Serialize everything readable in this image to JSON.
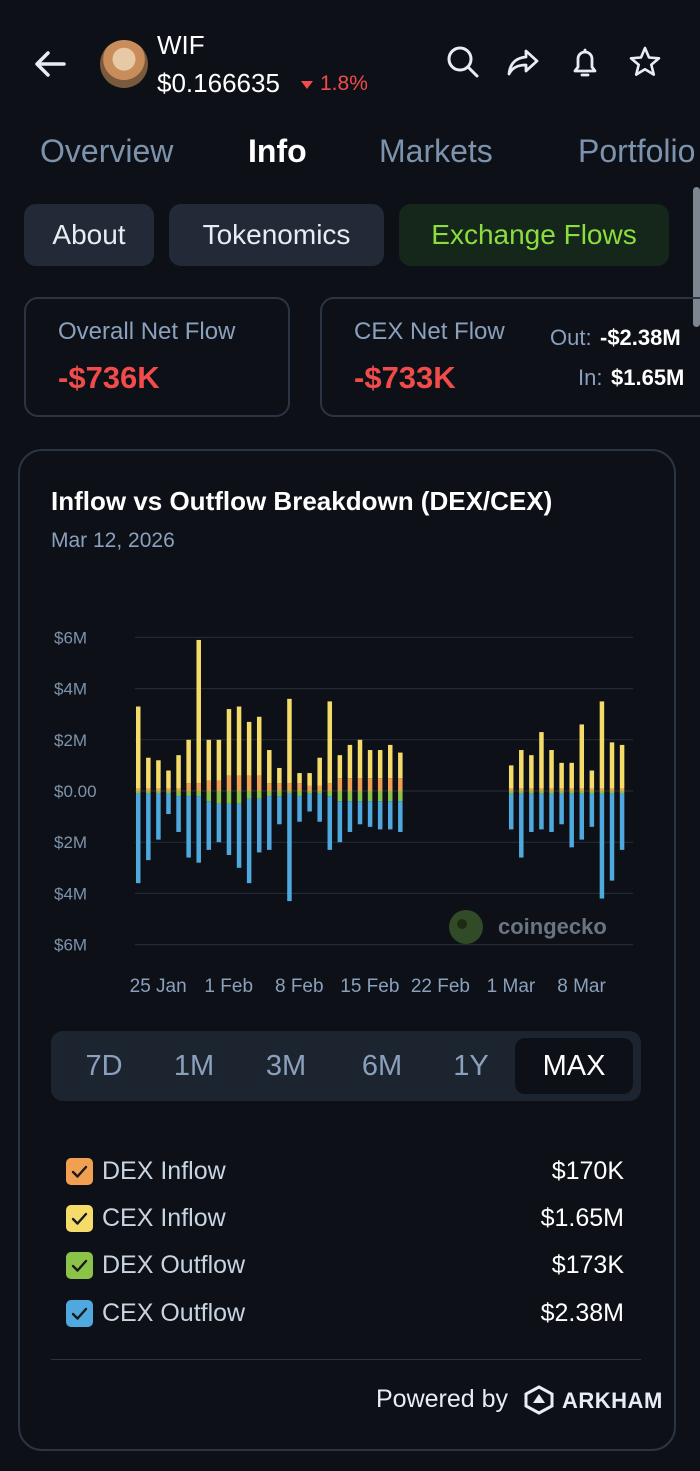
{
  "header": {
    "symbol": "WIF",
    "price": "$0.166635",
    "change": "1.8%"
  },
  "tabs": [
    {
      "label": "Overview"
    },
    {
      "label": "Info"
    },
    {
      "label": "Markets"
    },
    {
      "label": "Portfolio"
    }
  ],
  "pills": [
    {
      "label": "About"
    },
    {
      "label": "Tokenomics"
    },
    {
      "label": "Exchange Flows"
    }
  ],
  "overall": {
    "label": "Overall Net Flow",
    "value": "-$736K"
  },
  "cex": {
    "label": "CEX Net Flow",
    "value": "-$733K",
    "out_label": "Out:",
    "out_value": "-$2.38M",
    "in_label": "In:",
    "in_value": "$1.65M"
  },
  "chart": {
    "title": "Inflow vs Outflow Breakdown (DEX/CEX)",
    "date": "Mar 12, 2026",
    "watermark": "coingecko"
  },
  "chart_data": {
    "type": "bar",
    "stacked": true,
    "y_ticks": [
      "$6M",
      "$4M",
      "$2M",
      "$0.00",
      "$2M",
      "$4M",
      "$6M"
    ],
    "ylim": [
      -6,
      6
    ],
    "y_unit": "$M",
    "x_ticks": [
      "25 Jan",
      "1 Feb",
      "8 Feb",
      "15 Feb",
      "22 Feb",
      "1 Mar",
      "8 Mar"
    ],
    "x": [
      "Jan 23",
      "Jan 24",
      "Jan 25",
      "Jan 26",
      "Jan 27",
      "Jan 28",
      "Jan 29",
      "Jan 30",
      "Jan 31",
      "Feb 1",
      "Feb 2",
      "Feb 3",
      "Feb 4",
      "Feb 5",
      "Feb 6",
      "Feb 7",
      "Feb 8",
      "Feb 9",
      "Feb 10",
      "Feb 11",
      "Feb 12",
      "Feb 13",
      "Feb 14",
      "Feb 15",
      "Feb 16",
      "Feb 17",
      "Feb 18",
      "Mar 1",
      "Mar 2",
      "Mar 3",
      "Mar 4",
      "Mar 5",
      "Mar 6",
      "Mar 7",
      "Mar 8",
      "Mar 9",
      "Mar 10",
      "Mar 11",
      "Mar 12"
    ],
    "grid": true,
    "legend_position": "bottom",
    "series": [
      {
        "name": "DEX Inflow",
        "color": "#f0a050",
        "values": [
          0.1,
          0.1,
          0.1,
          0.1,
          0.1,
          0.3,
          0.3,
          0.4,
          0.4,
          0.6,
          0.6,
          0.6,
          0.6,
          0.3,
          0.3,
          0.3,
          0.3,
          0.2,
          0.2,
          0.3,
          0.5,
          0.5,
          0.5,
          0.5,
          0.5,
          0.5,
          0.5,
          0.1,
          0.1,
          0.1,
          0.1,
          0.1,
          0.1,
          0.1,
          0.1,
          0.1,
          0.1,
          0.1,
          0.1
        ]
      },
      {
        "name": "CEX Inflow",
        "color": "#f5dc6a",
        "values": [
          3.2,
          1.2,
          1.1,
          0.7,
          1.3,
          1.7,
          5.6,
          1.6,
          1.6,
          2.6,
          2.7,
          2.1,
          2.3,
          1.3,
          0.6,
          3.3,
          0.4,
          0.5,
          1.1,
          3.2,
          0.9,
          1.3,
          1.5,
          1.1,
          1.1,
          1.3,
          1.0,
          0.9,
          1.5,
          1.3,
          2.2,
          1.5,
          1.0,
          1.0,
          2.5,
          0.7,
          3.4,
          1.8,
          1.7
        ]
      },
      {
        "name": "DEX Outflow",
        "color": "#8bc34a",
        "values": [
          0.1,
          0.1,
          0.1,
          0.1,
          0.2,
          0.2,
          0.2,
          0.4,
          0.5,
          0.5,
          0.5,
          0.3,
          0.3,
          0.2,
          0.2,
          0.1,
          0.2,
          0.1,
          0.1,
          0.2,
          0.4,
          0.4,
          0.4,
          0.4,
          0.4,
          0.4,
          0.4,
          0.1,
          0.1,
          0.1,
          0.1,
          0.1,
          0.1,
          0.1,
          0.1,
          0.1,
          0.1,
          0.1,
          0.1
        ]
      },
      {
        "name": "CEX Outflow",
        "color": "#4fa8de",
        "values": [
          -3.6,
          -2.7,
          -1.9,
          -0.9,
          -1.6,
          -2.6,
          -2.8,
          -2.3,
          -2.0,
          -2.5,
          -3.0,
          -3.6,
          -2.4,
          -2.3,
          -1.3,
          -4.3,
          -1.2,
          -0.8,
          -1.2,
          -2.3,
          -2.0,
          -1.6,
          -1.3,
          -1.4,
          -1.5,
          -1.5,
          -1.6,
          -1.5,
          -2.6,
          -1.6,
          -1.5,
          -1.6,
          -1.3,
          -2.2,
          -1.9,
          -1.4,
          -4.2,
          -3.5,
          -2.3
        ]
      }
    ]
  },
  "ranges": [
    {
      "label": "7D"
    },
    {
      "label": "1M"
    },
    {
      "label": "3M"
    },
    {
      "label": "6M"
    },
    {
      "label": "1Y"
    },
    {
      "label": "MAX"
    }
  ],
  "legend": [
    {
      "label": "DEX Inflow",
      "value": "$170K",
      "color": "#f0a050"
    },
    {
      "label": "CEX Inflow",
      "value": "$1.65M",
      "color": "#f5dc6a"
    },
    {
      "label": "DEX Outflow",
      "value": "$173K",
      "color": "#8bc34a"
    },
    {
      "label": "CEX Outflow",
      "value": "$2.38M",
      "color": "#4fa8de"
    }
  ],
  "footer": {
    "powered": "Powered by",
    "brand": "ARKHAM"
  }
}
